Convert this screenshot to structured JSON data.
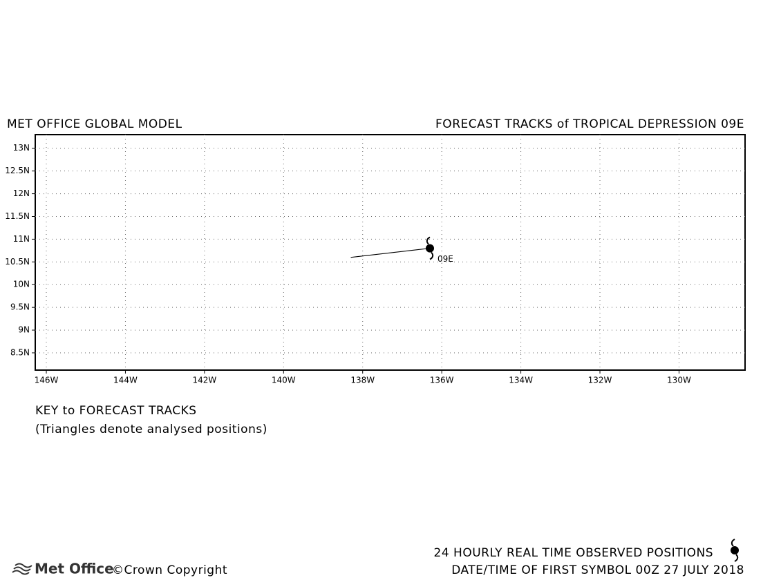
{
  "chart_data": {
    "type": "line",
    "subtitle": "MET OFFICE GLOBAL MODEL",
    "title": "FORECAST TRACKS of TROPICAL DEPRESSION 09E",
    "series": [
      {
        "name": "09E",
        "color": "#000000",
        "x": [
          -138.3,
          -136.3
        ],
        "values": [
          10.6,
          10.8
        ]
      }
    ],
    "xlim": [
      -146.28,
      -128.33
    ],
    "ylim": [
      8.12,
      13.3
    ],
    "xticks": [
      {
        "value": -146,
        "label": "146W"
      },
      {
        "value": -144,
        "label": "144W"
      },
      {
        "value": -142,
        "label": "142W"
      },
      {
        "value": -140,
        "label": "140W"
      },
      {
        "value": -138,
        "label": "138W"
      },
      {
        "value": -136,
        "label": "136W"
      },
      {
        "value": -134,
        "label": "134W"
      },
      {
        "value": -132,
        "label": "132W"
      },
      {
        "value": -130,
        "label": "130W"
      }
    ],
    "yticks": [
      {
        "value": 8.5,
        "label": "8.5N"
      },
      {
        "value": 9,
        "label": "9N"
      },
      {
        "value": 9.5,
        "label": "9.5N"
      },
      {
        "value": 10,
        "label": "10N"
      },
      {
        "value": 10.5,
        "label": "10.5N"
      },
      {
        "value": 11,
        "label": "11N"
      },
      {
        "value": 11.5,
        "label": "11.5N"
      },
      {
        "value": 12,
        "label": "12N"
      },
      {
        "value": 12.5,
        "label": "12.5N"
      },
      {
        "value": 13,
        "label": "13N"
      }
    ],
    "grid": true,
    "key_title": "KEY to FORECAST TRACKS",
    "key_note": "(Triangles denote analysed positions)",
    "legend_text": "24 HOURLY REAL TIME OBSERVED POSITIONS",
    "date_text": "DATE/TIME OF FIRST SYMBOL 00Z 27 JULY 2018",
    "logo": "Met Office",
    "copyright": "©Crown Copyright"
  }
}
